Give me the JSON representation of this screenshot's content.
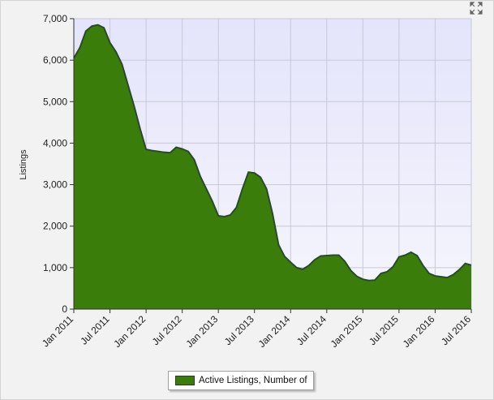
{
  "chart_data": {
    "type": "area",
    "title": "",
    "ylabel": "Listings",
    "xlabel": "",
    "ylim": [
      0,
      7000
    ],
    "yticks": [
      {
        "value": 0,
        "label": "0"
      },
      {
        "value": 1000,
        "label": "1,000"
      },
      {
        "value": 2000,
        "label": "2,000"
      },
      {
        "value": 3000,
        "label": "3,000"
      },
      {
        "value": 4000,
        "label": "4,000"
      },
      {
        "value": 5000,
        "label": "5,000"
      },
      {
        "value": 6000,
        "label": "6,000"
      },
      {
        "value": 7000,
        "label": "7,000"
      }
    ],
    "xlim": [
      0,
      66
    ],
    "xticks": [
      {
        "index": 0,
        "label": "Jan 2011"
      },
      {
        "index": 6,
        "label": "Jul 2011"
      },
      {
        "index": 12,
        "label": "Jan 2012"
      },
      {
        "index": 18,
        "label": "Jul 2012"
      },
      {
        "index": 24,
        "label": "Jan 2013"
      },
      {
        "index": 30,
        "label": "Jul 2013"
      },
      {
        "index": 36,
        "label": "Jan 2014"
      },
      {
        "index": 42,
        "label": "Jul 2014"
      },
      {
        "index": 48,
        "label": "Jan 2015"
      },
      {
        "index": 54,
        "label": "Jul 2015"
      },
      {
        "index": 60,
        "label": "Jan 2016"
      },
      {
        "index": 66,
        "label": "Jul 2016"
      }
    ],
    "grid": true,
    "legend_position": "bottom",
    "series": [
      {
        "name": "Active Listings, Number of",
        "color": "#3a7d0a",
        "values": [
          6050,
          6300,
          6700,
          6820,
          6850,
          6780,
          6420,
          6200,
          5900,
          5400,
          4900,
          4350,
          3850,
          3820,
          3800,
          3780,
          3770,
          3900,
          3860,
          3800,
          3600,
          3200,
          2900,
          2600,
          2250,
          2230,
          2270,
          2450,
          2900,
          3300,
          3280,
          3180,
          2900,
          2300,
          1550,
          1270,
          1130,
          1000,
          960,
          1050,
          1190,
          1280,
          1290,
          1300,
          1300,
          1150,
          930,
          790,
          720,
          690,
          700,
          860,
          900,
          1020,
          1260,
          1300,
          1370,
          1290,
          1050,
          860,
          800,
          780,
          760,
          830,
          950,
          1100,
          1060
        ]
      }
    ]
  },
  "legend": {
    "label": "Active Listings, Number of"
  },
  "icons": {
    "expand": "expand-icon"
  }
}
